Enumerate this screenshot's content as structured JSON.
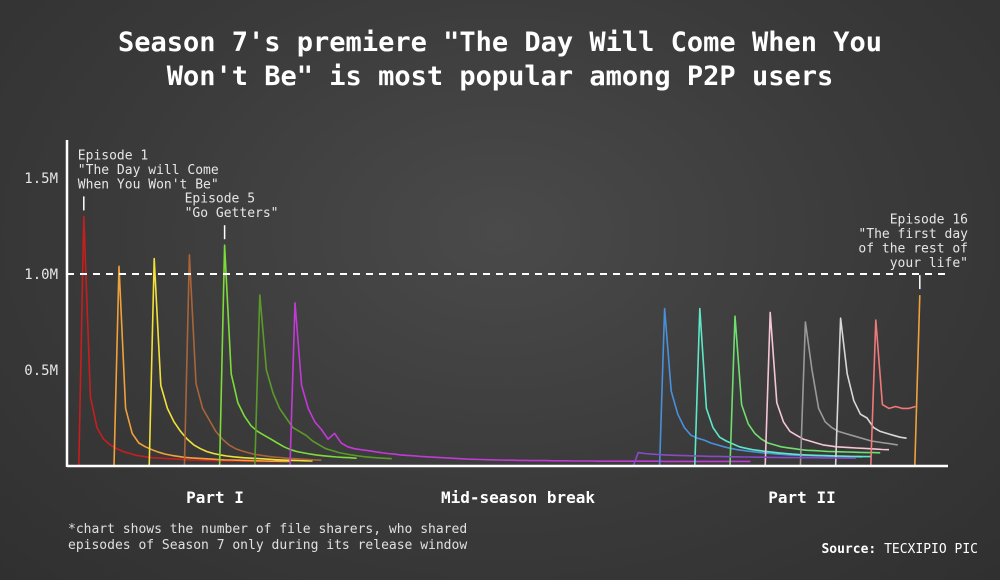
{
  "chart_data": {
    "type": "line",
    "title_lines": [
      "Season 7's premiere \"The Day Will Come When You",
      "Won't Be\" is most popular among P2P users"
    ],
    "xlabel": "",
    "ylabel": "",
    "ylim": [
      0,
      1750000
    ],
    "yticks": [
      {
        "value": 500000,
        "label": "0.5M"
      },
      {
        "value": 1000000,
        "label": "1.0M"
      },
      {
        "value": 1500000,
        "label": "1.5M"
      }
    ],
    "reference_line": {
      "value": 1000000,
      "style": "dashed"
    },
    "grid": false,
    "sections": [
      "Part I",
      "Mid-season break",
      "Part II"
    ],
    "series": [
      {
        "episode": 1,
        "color": "#c81e1e",
        "start": 1,
        "peak": 1300000,
        "tail": [
          360000,
          200000,
          140000,
          110000,
          90000,
          75000,
          65000,
          55000,
          50000,
          45000,
          42000,
          40000,
          38000,
          36000,
          34000,
          32000,
          31000,
          30000,
          29000,
          28000,
          27000,
          26000,
          26000,
          25000,
          25000,
          24000,
          24000,
          23000,
          23000,
          22000
        ]
      },
      {
        "episode": 2,
        "color": "#f0a23a",
        "start": 5,
        "peak": 1040000,
        "tail": [
          300000,
          170000,
          120000,
          100000,
          85000,
          72000,
          62000,
          55000,
          50000,
          45000,
          42000,
          40000,
          38000,
          36000,
          34000,
          32000,
          31000,
          30000,
          29000,
          28000,
          27000,
          26000,
          25000,
          25000,
          24000,
          24000
        ]
      },
      {
        "episode": 3,
        "color": "#f1e13a",
        "start": 9,
        "peak": 1080000,
        "tail": [
          420000,
          300000,
          230000,
          180000,
          140000,
          110000,
          90000,
          75000,
          65000,
          58000,
          52000,
          48000,
          45000,
          42000,
          40000,
          38000,
          36000,
          34000,
          32000,
          30000,
          29000,
          28000,
          27000,
          26000
        ]
      },
      {
        "episode": 4,
        "color": "#a9643a",
        "start": 13,
        "peak": 1100000,
        "tail": [
          430000,
          300000,
          240000,
          180000,
          140000,
          110000,
          90000,
          78000,
          68000,
          60000,
          55000,
          50000,
          46000,
          43000,
          40000,
          38000,
          36000,
          34000,
          32000,
          30000
        ]
      },
      {
        "episode": 5,
        "color": "#7ddc3a",
        "start": 17,
        "peak": 1150000,
        "tail": [
          480000,
          330000,
          260000,
          210000,
          180000,
          160000,
          140000,
          120000,
          100000,
          85000,
          75000,
          68000,
          62000,
          57000,
          53000,
          50000,
          47000,
          45000,
          43000,
          40000
        ]
      },
      {
        "episode": 6,
        "color": "#5a9a2a",
        "start": 21,
        "peak": 890000,
        "tail": [
          500000,
          380000,
          300000,
          250000,
          200000,
          180000,
          160000,
          130000,
          110000,
          90000,
          80000,
          70000,
          63000,
          57000,
          52000,
          48000,
          45000,
          42000,
          40000,
          38000
        ]
      },
      {
        "episode": 7,
        "color": "#c23ad6",
        "start": 25,
        "peak": 850000,
        "tail": [
          420000,
          300000,
          230000,
          190000,
          140000,
          170000,
          120000,
          100000,
          90000,
          85000,
          80000,
          75000,
          70000,
          65000,
          62000,
          58000,
          55000,
          53000,
          50000,
          48000,
          46000,
          44000,
          42000,
          40000,
          38000,
          36000,
          35000,
          34000,
          33000,
          32000,
          31000,
          30000,
          30000,
          29000,
          29000,
          28000,
          28000,
          28000,
          27000,
          27000,
          27000,
          26000,
          26000,
          26000,
          26000,
          25000,
          25000,
          25000,
          25000,
          25000,
          25000,
          25000,
          25000,
          25000,
          25000,
          24000,
          24000,
          24000,
          24000,
          24000,
          24000,
          24000,
          24000,
          24000,
          24000,
          24000,
          24000,
          24000,
          24000
        ]
      },
      {
        "episode": 8,
        "color": "#4a90d9",
        "start": 67,
        "peak": 820000,
        "tail": [
          390000,
          270000,
          200000,
          160000,
          145000,
          135000,
          120000,
          110000,
          100000,
          92000,
          85000,
          80000,
          76000,
          72000,
          68000,
          65000,
          62000,
          60000,
          58000,
          56000,
          55000,
          54000,
          53000,
          52000,
          51000,
          50000,
          49000,
          48000,
          48000,
          47000
        ]
      },
      {
        "episode": 9,
        "color": "#5ee8c8",
        "start": 71,
        "peak": 820000,
        "tail": [
          300000,
          200000,
          150000,
          130000,
          115000,
          100000,
          92000,
          85000,
          80000,
          76000,
          72000,
          68000,
          65000,
          62000,
          60000,
          58000,
          56000,
          55000,
          54000,
          53000,
          52000,
          51000,
          50000,
          50000,
          49000,
          49000
        ]
      },
      {
        "episode": 10,
        "color": "#6ee06e",
        "start": 75,
        "peak": 780000,
        "tail": [
          320000,
          220000,
          170000,
          140000,
          120000,
          110000,
          100000,
          95000,
          90000,
          85000,
          82000,
          80000,
          78000,
          76000,
          75000,
          74000,
          73000,
          72000,
          71000,
          70000,
          70000,
          69000
        ]
      },
      {
        "episode": 11,
        "color": "#f4c6d8",
        "start": 79,
        "peak": 800000,
        "tail": [
          330000,
          230000,
          180000,
          160000,
          140000,
          130000,
          120000,
          110000,
          105000,
          100000,
          98000,
          96000,
          94000,
          92000,
          90000,
          88000,
          86000,
          85000
        ]
      },
      {
        "episode": 12,
        "color": "#9a9a9a",
        "start": 83,
        "peak": 750000,
        "tail": [
          500000,
          300000,
          230000,
          200000,
          180000,
          170000,
          160000,
          150000,
          140000,
          130000,
          125000,
          120000,
          115000,
          110000
        ]
      },
      {
        "episode": 13,
        "color": "#d8d8d8",
        "start": 87,
        "peak": 770000,
        "tail": [
          480000,
          340000,
          270000,
          250000,
          200000,
          180000,
          170000,
          160000,
          150000,
          145000
        ]
      },
      {
        "episode": 14,
        "color": "#f07a7a",
        "start": 91,
        "peak": 760000,
        "tail": [
          320000,
          300000,
          310000,
          300000,
          300000,
          310000
        ]
      },
      {
        "episode": 15,
        "color": "#8a4ac8",
        "start": 64,
        "peak": 70000,
        "tail": [
          65000,
          62000,
          60000,
          58000,
          56000,
          55000,
          54000,
          53000,
          52000,
          51000,
          50000,
          50000,
          49000,
          48000,
          48000,
          47000,
          47000,
          46000,
          46000,
          45000,
          45000,
          44000,
          44000,
          44000,
          43000,
          43000,
          43000,
          42000,
          42000,
          42000,
          41000,
          41000,
          41000
        ]
      },
      {
        "episode": 16,
        "color": "#f0a23a",
        "start": 96,
        "peak": 890000,
        "tail": []
      }
    ],
    "annotations": [
      {
        "lines": [
          "Episode 1",
          "\"The Day will Come",
          "When You Won't Be\""
        ],
        "episode": 1
      },
      {
        "lines": [
          "Episode 5",
          "\"Go Getters\""
        ],
        "episode": 5
      },
      {
        "lines": [
          "Episode 16",
          "\"The first day",
          "of the rest of",
          "your life\""
        ],
        "episode": 16
      }
    ]
  },
  "footnote_lines": [
    "*chart shows the number of file sharers, who shared",
    "episodes of Season 7 only during its release window"
  ],
  "source": {
    "label": "Source:",
    "value": "TECXIPIO PIC"
  }
}
